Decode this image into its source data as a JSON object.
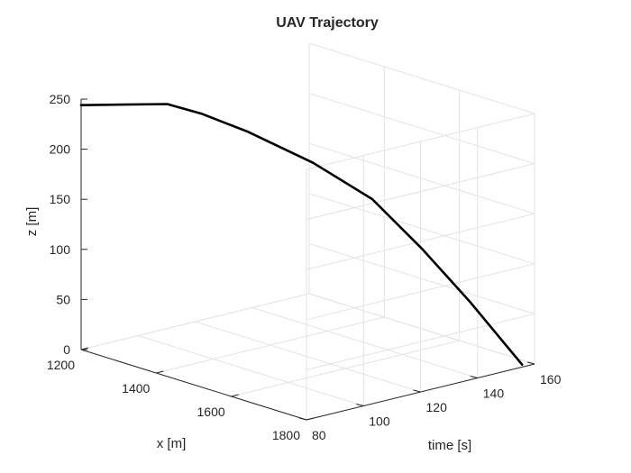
{
  "chart_data": {
    "type": "line",
    "title": "UAV Trajectory",
    "x_axis": {
      "label": "time [s]",
      "range": [
        80,
        160
      ],
      "ticks": [
        80,
        100,
        120,
        140,
        160
      ],
      "tick_labels": [
        "80",
        "100",
        "120",
        "140",
        "160"
      ]
    },
    "y_axis": {
      "label": "x [m]",
      "range": [
        1200,
        1800
      ],
      "ticks": [
        1200,
        1400,
        1600,
        1800
      ],
      "tick_labels": [
        "1200",
        "1400",
        "1600",
        "1800"
      ]
    },
    "z_axis": {
      "label": "z [m]",
      "range": [
        0,
        250
      ],
      "ticks": [
        0,
        50,
        100,
        150,
        200,
        250
      ],
      "tick_labels": [
        "0",
        "50",
        "100",
        "150",
        "200",
        "250"
      ]
    },
    "grid": true,
    "view": "3d",
    "series": [
      {
        "color": "#000000",
        "points": [
          {
            "time": 80.0,
            "x": 1200,
            "z": 244
          },
          {
            "time": 110.2,
            "x": 1200,
            "z": 224
          },
          {
            "time": 115.3,
            "x": 1252,
            "z": 217
          },
          {
            "time": 120.6,
            "x": 1335,
            "z": 205
          },
          {
            "time": 129.6,
            "x": 1441,
            "z": 180
          },
          {
            "time": 137.3,
            "x": 1540,
            "z": 150
          },
          {
            "time": 144.0,
            "x": 1623,
            "z": 105
          },
          {
            "time": 150.0,
            "x": 1703,
            "z": 58
          },
          {
            "time": 155.9,
            "x": 1798,
            "z": 2
          }
        ]
      }
    ]
  }
}
